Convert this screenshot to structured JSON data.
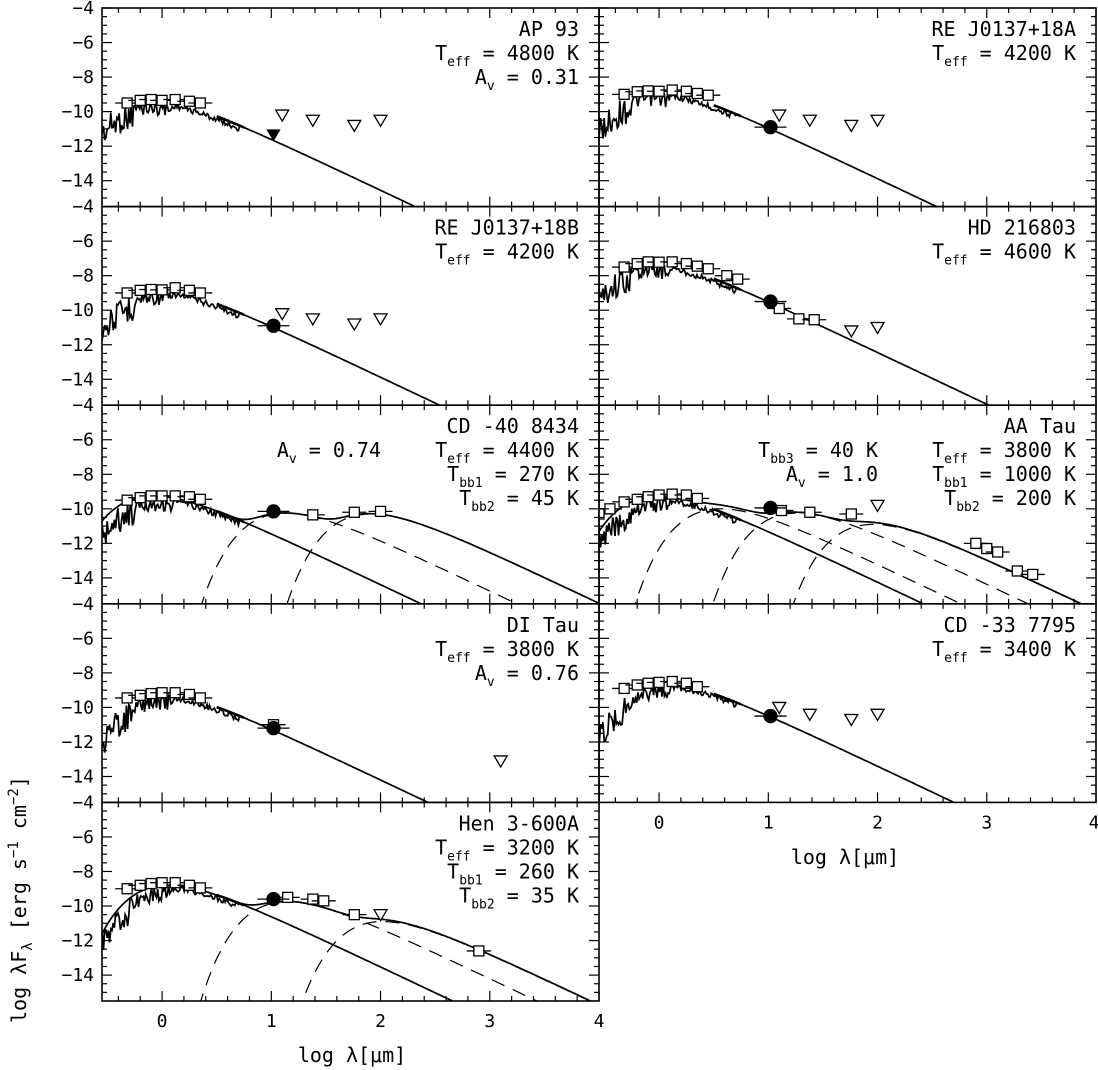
{
  "chart_data": {
    "type": "scatter",
    "description_units": {
      "x": "log λ[μm]",
      "y": "log λF_λ [erg s^-1 cm^-2]"
    },
    "xlabel": "log λ[μm]",
    "ylabel_parts": {
      "main": "log λF",
      "sub": "λ",
      "rest": " [erg s",
      "exp1": "−1",
      "mid": " cm",
      "exp2": "−2",
      "close": "]"
    },
    "xlim": [
      -0.55,
      4.0
    ],
    "ylim": [
      -15.5,
      -4.0
    ],
    "xticks": [
      0,
      1,
      2,
      3,
      4
    ],
    "yticks": [
      -4,
      -6,
      -8,
      -10,
      -12,
      -14
    ],
    "grid": false,
    "panels": [
      {
        "id": "ap93",
        "annotations": [
          {
            "text": "AP 93",
            "align": "right",
            "row": 0
          },
          {
            "main": "T",
            "sub": "eff",
            "rest": " = 4800 K",
            "align": "right",
            "row": 1
          },
          {
            "main": "A",
            "sub": "v",
            "rest": " = 0.31",
            "align": "right",
            "row": 2
          }
        ],
        "teff": 4800,
        "peak_y": -9.3,
        "photometry": [
          [
            -0.32,
            -9.5
          ],
          [
            -0.2,
            -9.35
          ],
          [
            -0.1,
            -9.3
          ],
          [
            0.0,
            -9.35
          ],
          [
            0.12,
            -9.3
          ],
          [
            0.25,
            -9.4
          ],
          [
            0.35,
            -9.5
          ]
        ],
        "circles": [],
        "filled_triangles": [
          [
            1.02,
            -11.3
          ]
        ],
        "upper_limits": [
          [
            1.1,
            -10.2
          ],
          [
            1.38,
            -10.5
          ],
          [
            1.76,
            -10.8
          ],
          [
            2.0,
            -10.5
          ]
        ],
        "blackbodies": []
      },
      {
        "id": "rej0137a",
        "annotations": [
          {
            "text": "RE J0137+18A",
            "align": "right",
            "row": 0
          },
          {
            "main": "T",
            "sub": "eff",
            "rest": " = 4200 K",
            "align": "right",
            "row": 1
          }
        ],
        "teff": 4200,
        "peak_y": -8.8,
        "photometry": [
          [
            -0.32,
            -9.0
          ],
          [
            -0.2,
            -8.85
          ],
          [
            -0.1,
            -8.8
          ],
          [
            0.0,
            -8.82
          ],
          [
            0.12,
            -8.75
          ],
          [
            0.25,
            -8.82
          ],
          [
            0.35,
            -8.95
          ],
          [
            0.45,
            -9.05
          ]
        ],
        "circles": [
          [
            1.02,
            -10.9
          ]
        ],
        "filled_triangles": [],
        "upper_limits": [
          [
            1.1,
            -10.2
          ],
          [
            1.38,
            -10.5
          ],
          [
            1.76,
            -10.8
          ],
          [
            2.0,
            -10.5
          ]
        ],
        "blackbodies": []
      },
      {
        "id": "rej0137b",
        "annotations": [
          {
            "text": "RE J0137+18B",
            "align": "right",
            "row": 0
          },
          {
            "main": "T",
            "sub": "eff",
            "rest": " = 4200 K",
            "align": "right",
            "row": 1
          }
        ],
        "teff": 4200,
        "peak_y": -8.8,
        "photometry": [
          [
            -0.32,
            -9.0
          ],
          [
            -0.2,
            -8.85
          ],
          [
            -0.1,
            -8.8
          ],
          [
            0.0,
            -8.82
          ],
          [
            0.12,
            -8.7
          ],
          [
            0.25,
            -8.85
          ],
          [
            0.35,
            -9.0
          ]
        ],
        "circles": [
          [
            1.02,
            -10.9
          ]
        ],
        "filled_triangles": [],
        "upper_limits": [
          [
            1.1,
            -10.2
          ],
          [
            1.38,
            -10.5
          ],
          [
            1.76,
            -10.8
          ],
          [
            2.0,
            -10.5
          ]
        ],
        "blackbodies": []
      },
      {
        "id": "hd216803",
        "annotations": [
          {
            "text": "HD 216803",
            "align": "right",
            "row": 0
          },
          {
            "main": "T",
            "sub": "eff",
            "rest": " = 4600 K",
            "align": "right",
            "row": 1
          }
        ],
        "teff": 4600,
        "peak_y": -7.25,
        "photometry": [
          [
            -0.32,
            -7.5
          ],
          [
            -0.2,
            -7.3
          ],
          [
            -0.1,
            -7.2
          ],
          [
            0.0,
            -7.22
          ],
          [
            0.12,
            -7.2
          ],
          [
            0.25,
            -7.3
          ],
          [
            0.35,
            -7.45
          ],
          [
            0.45,
            -7.6
          ],
          [
            0.62,
            -8.0
          ],
          [
            0.72,
            -8.2
          ],
          [
            1.1,
            -9.9
          ],
          [
            1.28,
            -10.5
          ],
          [
            1.42,
            -10.55
          ]
        ],
        "circles": [
          [
            1.02,
            -9.5
          ]
        ],
        "filled_triangles": [],
        "upper_limits": [
          [
            1.76,
            -11.2
          ],
          [
            2.0,
            -11.0
          ]
        ],
        "blackbodies": []
      },
      {
        "id": "cd408434",
        "annotations": [
          {
            "text": "CD -40 8434",
            "align": "right",
            "row": 0
          },
          {
            "main": "T",
            "sub": "eff",
            "rest": " = 4400 K",
            "align": "right",
            "row": 1
          },
          {
            "main": "T",
            "sub": "bb1",
            "rest": " = 270 K",
            "align": "right",
            "row": 2
          },
          {
            "main": "T",
            "sub": "bb2",
            "rest": " = 45 K",
            "align": "right",
            "row": 3
          },
          {
            "main": "A",
            "sub": "v",
            "rest": " = 0.74",
            "align": "mid",
            "row": 1
          }
        ],
        "teff": 4400,
        "peak_y": -9.25,
        "photometry": [
          [
            -0.32,
            -9.5
          ],
          [
            -0.2,
            -9.35
          ],
          [
            -0.1,
            -9.25
          ],
          [
            0.0,
            -9.25
          ],
          [
            0.12,
            -9.25
          ],
          [
            0.25,
            -9.3
          ],
          [
            0.35,
            -9.45
          ],
          [
            1.38,
            -10.35
          ],
          [
            1.76,
            -10.2
          ],
          [
            2.0,
            -10.15
          ]
        ],
        "circles": [
          [
            1.02,
            -10.15
          ]
        ],
        "filled_triangles": [],
        "upper_limits": [],
        "blackbodies": [
          {
            "temp": 270,
            "peak_y": -10.25,
            "style": "dashed"
          },
          {
            "temp": 45,
            "peak_y": -10.3,
            "style": "dashed"
          }
        ]
      },
      {
        "id": "aatau",
        "annotations": [
          {
            "text": "AA Tau",
            "align": "right",
            "row": 0
          },
          {
            "main": "T",
            "sub": "eff",
            "rest": " = 3800 K",
            "align": "right",
            "row": 1
          },
          {
            "main": "T",
            "sub": "bb1",
            "rest": " = 1000 K",
            "align": "right",
            "row": 2
          },
          {
            "main": "T",
            "sub": "bb2",
            "rest": " = 200 K",
            "align": "right",
            "row": 3
          },
          {
            "main": "T",
            "sub": "bb3",
            "rest": " = 40 K",
            "align": "mid",
            "row": 1
          },
          {
            "main": "A",
            "sub": "v",
            "rest": " = 1.0",
            "align": "mid",
            "row": 2
          }
        ],
        "teff": 3800,
        "peak_y": -9.3,
        "photometry": [
          [
            -0.55,
            -10.3
          ],
          [
            -0.45,
            -10.0
          ],
          [
            -0.32,
            -9.6
          ],
          [
            -0.2,
            -9.45
          ],
          [
            -0.1,
            -9.3
          ],
          [
            0.0,
            -9.2
          ],
          [
            0.12,
            -9.15
          ],
          [
            0.25,
            -9.2
          ],
          [
            0.35,
            -9.4
          ],
          [
            1.12,
            -10.1
          ],
          [
            1.38,
            -10.2
          ],
          [
            1.76,
            -10.3
          ],
          [
            2.9,
            -12.0
          ],
          [
            3.0,
            -12.3
          ],
          [
            3.1,
            -12.5
          ],
          [
            3.28,
            -13.6
          ],
          [
            3.42,
            -13.8
          ]
        ],
        "circles": [
          [
            1.02,
            -9.95
          ]
        ],
        "filled_triangles": [],
        "upper_limits": [
          [
            2.0,
            -9.8
          ]
        ],
        "blackbodies": [
          {
            "temp": 1000,
            "peak_y": -10.0,
            "style": "dashed"
          },
          {
            "temp": 200,
            "peak_y": -10.25,
            "style": "dashed"
          },
          {
            "temp": 40,
            "peak_y": -10.9,
            "style": "dashed"
          }
        ]
      },
      {
        "id": "ditau",
        "annotations": [
          {
            "text": "DI Tau",
            "align": "right",
            "row": 0
          },
          {
            "main": "T",
            "sub": "eff",
            "rest": " = 3800 K",
            "align": "right",
            "row": 1
          },
          {
            "main": "A",
            "sub": "v",
            "rest": " = 0.76",
            "align": "right",
            "row": 2
          }
        ],
        "teff": 3800,
        "peak_y": -9.25,
        "photometry": [
          [
            -0.32,
            -9.45
          ],
          [
            -0.2,
            -9.3
          ],
          [
            -0.1,
            -9.2
          ],
          [
            0.0,
            -9.15
          ],
          [
            0.12,
            -9.15
          ],
          [
            0.25,
            -9.25
          ],
          [
            0.35,
            -9.45
          ],
          [
            1.02,
            -11.0
          ]
        ],
        "circles": [
          [
            1.02,
            -11.2
          ]
        ],
        "filled_triangles": [],
        "upper_limits": [
          [
            3.1,
            -13.1
          ]
        ],
        "blackbodies": []
      },
      {
        "id": "cd337795",
        "annotations": [
          {
            "text": "CD -33 7795",
            "align": "right",
            "row": 0
          },
          {
            "main": "T",
            "sub": "eff",
            "rest": " = 3400 K",
            "align": "right",
            "row": 1
          }
        ],
        "teff": 3400,
        "peak_y": -8.6,
        "photometry": [
          [
            -0.32,
            -8.9
          ],
          [
            -0.2,
            -8.7
          ],
          [
            -0.1,
            -8.6
          ],
          [
            0.0,
            -8.55
          ],
          [
            0.12,
            -8.5
          ],
          [
            0.25,
            -8.6
          ],
          [
            0.35,
            -8.8
          ]
        ],
        "circles": [
          [
            1.02,
            -10.5
          ]
        ],
        "filled_triangles": [],
        "upper_limits": [
          [
            1.1,
            -10.0
          ],
          [
            1.38,
            -10.4
          ],
          [
            1.76,
            -10.7
          ],
          [
            2.0,
            -10.4
          ]
        ],
        "blackbodies": []
      },
      {
        "id": "hen3600a",
        "annotations": [
          {
            "text": "Hen 3-600A",
            "align": "right",
            "row": 0
          },
          {
            "main": "T",
            "sub": "eff",
            "rest": " = 3200 K",
            "align": "right",
            "row": 1
          },
          {
            "main": "T",
            "sub": "bb1",
            "rest": " = 260 K",
            "align": "right",
            "row": 2
          },
          {
            "main": "T",
            "sub": "bb2",
            "rest": " = 35 K",
            "align": "right",
            "row": 3
          }
        ],
        "teff": 3200,
        "peak_y": -8.8,
        "photometry": [
          [
            -0.32,
            -9.0
          ],
          [
            -0.2,
            -8.8
          ],
          [
            -0.1,
            -8.7
          ],
          [
            0.0,
            -8.65
          ],
          [
            0.12,
            -8.65
          ],
          [
            0.25,
            -8.8
          ],
          [
            0.35,
            -8.95
          ],
          [
            1.15,
            -9.5
          ],
          [
            1.38,
            -9.6
          ],
          [
            1.48,
            -9.7
          ],
          [
            1.76,
            -10.5
          ],
          [
            2.9,
            -12.6
          ]
        ],
        "circles": [
          [
            1.02,
            -9.6
          ]
        ],
        "filled_triangles": [],
        "upper_limits": [
          [
            2.0,
            -10.5
          ]
        ],
        "blackbodies": [
          {
            "temp": 260,
            "peak_y": -9.75,
            "style": "dashed"
          },
          {
            "temp": 35,
            "peak_y": -10.9,
            "style": "dashed"
          }
        ]
      }
    ]
  }
}
